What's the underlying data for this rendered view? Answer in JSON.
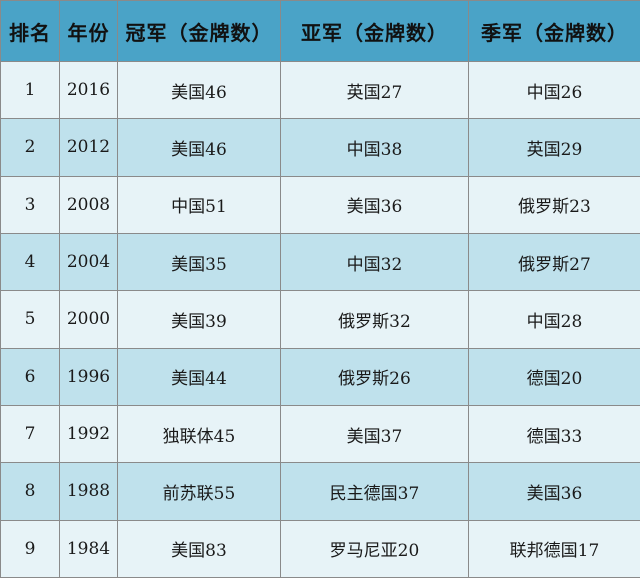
{
  "headers": [
    "排名",
    "年份",
    "冠军（金牌数）",
    "亚军（金牌数）",
    "季军（金牌数）"
  ],
  "rows": [
    {
      "rank": "1",
      "year": "2016",
      "gold": "美国46",
      "silver": "英国27",
      "bronze": "中国26"
    },
    {
      "rank": "2",
      "year": "2012",
      "gold": "美国46",
      "silver": "中国38",
      "bronze": "英国29"
    },
    {
      "rank": "3",
      "year": "2008",
      "gold": "中国51",
      "silver": "美国36",
      "bronze": "俄罗斯23"
    },
    {
      "rank": "4",
      "year": "2004",
      "gold": "美国35",
      "silver": "中国32",
      "bronze": "俄罗斯27"
    },
    {
      "rank": "5",
      "year": "2000",
      "gold": "美国39",
      "silver": "俄罗斯32",
      "bronze": "中国28"
    },
    {
      "rank": "6",
      "year": "1996",
      "gold": "美国44",
      "silver": "俄罗斯26",
      "bronze": "德国20"
    },
    {
      "rank": "7",
      "year": "1992",
      "gold": "独联体45",
      "silver": "美国37",
      "bronze": "德国33"
    },
    {
      "rank": "8",
      "year": "1988",
      "gold": "前苏联55",
      "silver": "民主德国37",
      "bronze": "美国36"
    },
    {
      "rank": "9",
      "year": "1984",
      "gold": "美国83",
      "silver": "罗马尼亚20",
      "bronze": "联邦德国17"
    }
  ],
  "colors": {
    "header_bg": "#4aa3c7",
    "row_light": "#e7f3f7",
    "row_dark": "#bfe1ec",
    "border": "#8a8a8a"
  }
}
